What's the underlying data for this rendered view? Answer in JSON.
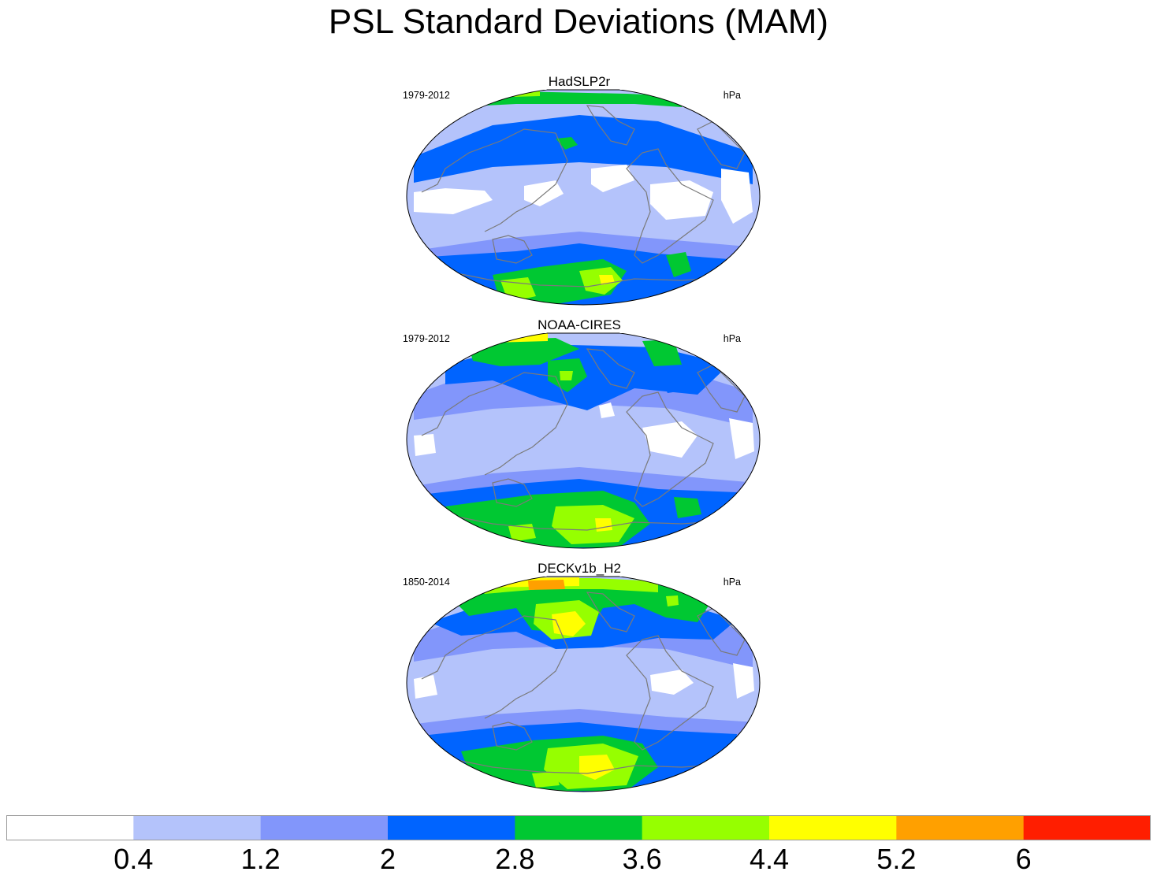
{
  "title": "PSL Standard Deviations (MAM)",
  "chart_data": {
    "type": "contour map",
    "colorbar": {
      "colors": [
        "#ffffff",
        "#b4c3fb",
        "#8296fb",
        "#0064ff",
        "#00c832",
        "#96ff00",
        "#ffff00",
        "#ffa000",
        "#ff1e00"
      ],
      "levels": [
        "0.4",
        "1.2",
        "2",
        "2.8",
        "3.6",
        "4.4",
        "5.2",
        "6"
      ]
    },
    "panels": [
      {
        "title": "HadSLP2r",
        "years": "1979-2012",
        "units": "hPa"
      },
      {
        "title": "NOAA-CIRES",
        "years": "1979-2012",
        "units": "hPa"
      },
      {
        "title": "DECKv1b_H2",
        "years": "1850-2014",
        "units": "hPa"
      }
    ]
  }
}
